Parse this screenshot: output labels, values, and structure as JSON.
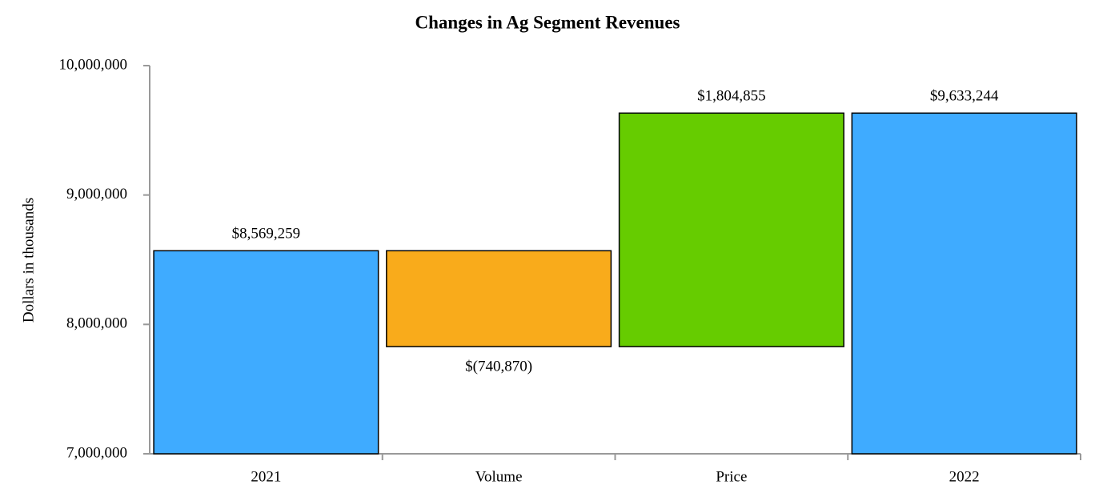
{
  "chart_data": {
    "type": "waterfall",
    "title": "Changes in Ag Segment Revenues",
    "y_label": "Dollars in thousands",
    "categories": [
      "2021",
      "Volume",
      "Price",
      "2022"
    ],
    "measure": [
      "absolute",
      "relative",
      "relative",
      "total"
    ],
    "values": [
      8569259,
      -740870,
      1804855,
      9633244
    ],
    "value_labels": [
      "$8,569,259",
      "$(740,870)",
      "$1,804,855",
      "$9,633,244"
    ],
    "colors": [
      "#3fabff",
      "#f9ab1b",
      "#66cc00",
      "#3fabff"
    ],
    "ylim": [
      7000000,
      10000000
    ],
    "yticks": [
      {
        "value": 7000000,
        "label": "7,000,000"
      },
      {
        "value": 8000000,
        "label": "8,000,000"
      },
      {
        "value": 9000000,
        "label": "9,000,000"
      },
      {
        "value": 10000000,
        "label": "10,000,000"
      }
    ],
    "grid": false
  }
}
